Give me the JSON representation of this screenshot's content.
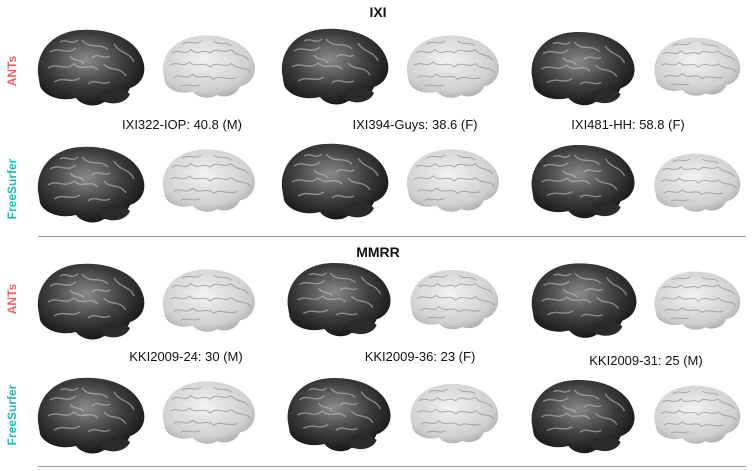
{
  "sections": [
    {
      "title": "IXI",
      "rows": [
        "ANTs",
        "FreeSurfer"
      ],
      "subjects": [
        {
          "caption": "IXI322-IOP:  40.8 (M)"
        },
        {
          "caption": "IXI394-Guys:  38.6 (F)"
        },
        {
          "caption": "IXI481-HH:  58.8 (F)"
        }
      ]
    },
    {
      "title": "MMRR",
      "rows": [
        "ANTs",
        "FreeSurfer"
      ],
      "subjects": [
        {
          "caption": "KKI2009-24:  30 (M)"
        },
        {
          "caption": "KKI2009-36:  23 (F)"
        },
        {
          "caption": "KKI2009-31:  25 (M)"
        }
      ]
    }
  ],
  "colors": {
    "ants": "#e9646b",
    "freesurfer": "#2ab5b5",
    "divider": "#9a9a9a"
  },
  "icons": {
    "rendered_brain": "brain-render-icon",
    "surface_mesh": "cortical-surface-icon"
  }
}
